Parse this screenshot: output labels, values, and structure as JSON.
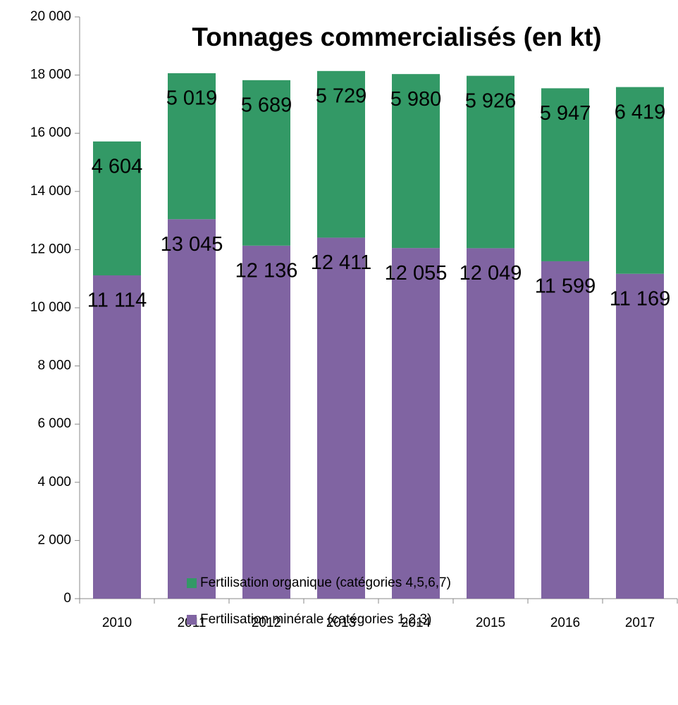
{
  "chart_data": {
    "type": "stacked_bar",
    "title": "Tonnages commercialisés (en kt)",
    "categories": [
      "2010",
      "2011",
      "2012",
      "2013",
      "2014",
      "2015",
      "2016",
      "2017"
    ],
    "series": [
      {
        "name": "Fertilisation minérale (catégories 1,2,3)",
        "color": "#8064a2",
        "values": [
          11114,
          13045,
          12136,
          12411,
          12055,
          12049,
          11599,
          11169
        ],
        "value_labels": [
          "11 114",
          "13 045",
          "12 136",
          "12 411",
          "12 055",
          "12 049",
          "11 599",
          "11 169"
        ]
      },
      {
        "name": "Fertilisation organique (catégories 4,5,6,7)",
        "color": "#339966",
        "values": [
          4604,
          5019,
          5689,
          5729,
          5980,
          5926,
          5947,
          6419
        ],
        "value_labels": [
          "4 604",
          "5 019",
          "5 689",
          "5 729",
          "5 980",
          "5 926",
          "5 947",
          "6 419"
        ]
      }
    ],
    "ylim": [
      0,
      20000
    ],
    "yticks": [
      0,
      {
        "value": 2000,
        "label": "2 000"
      },
      {
        "value": 4000,
        "label": "4 000"
      },
      {
        "value": 6000,
        "label": "6 000"
      },
      {
        "value": 8000,
        "label": "8 000"
      },
      {
        "value": 10000,
        "label": "10 000"
      },
      {
        "value": 12000,
        "label": "12 000"
      },
      {
        "value": 14000,
        "label": "14 000"
      },
      {
        "value": 16000,
        "label": "16 000"
      },
      {
        "value": 18000,
        "label": "18 000"
      },
      {
        "value": 20000,
        "label": "20 000"
      }
    ],
    "grid": false
  }
}
